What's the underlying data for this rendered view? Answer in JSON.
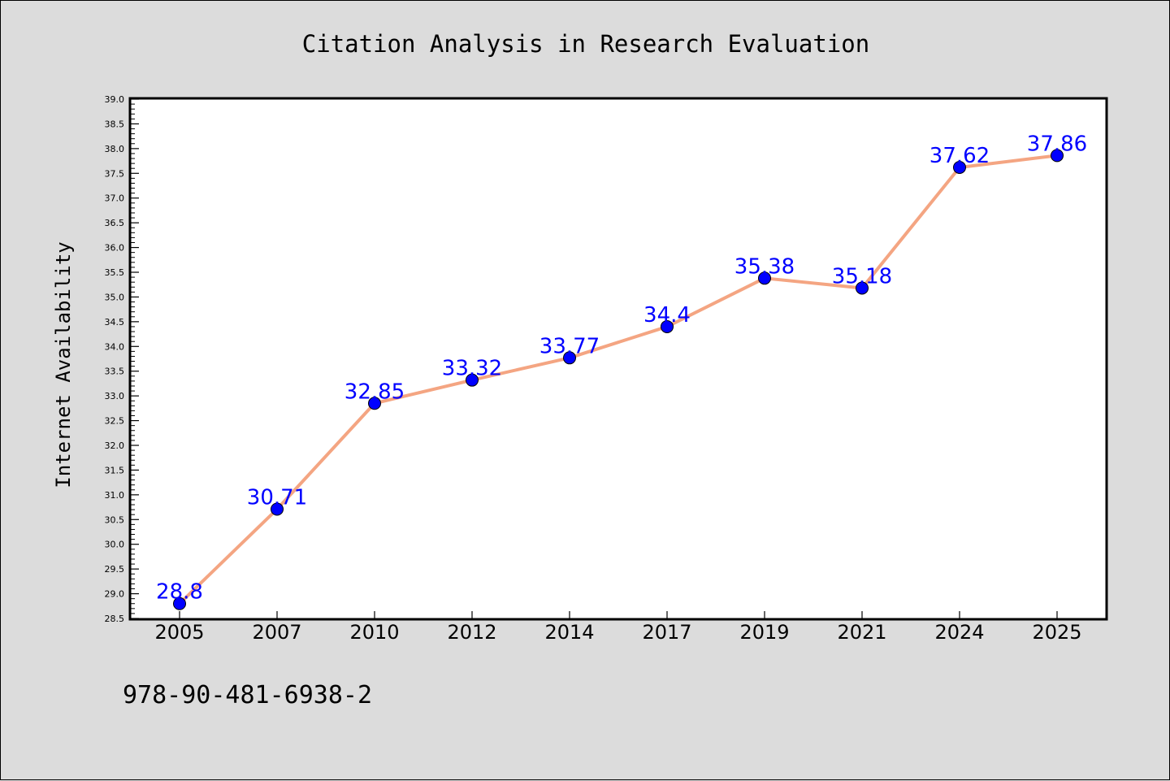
{
  "chart_data": {
    "type": "line",
    "title": "Citation Analysis in Research Evaluation",
    "ylabel": "Internet Availability",
    "xlabel": "",
    "categories": [
      "2005",
      "2007",
      "2010",
      "2012",
      "2014",
      "2017",
      "2019",
      "2021",
      "2024",
      "2025"
    ],
    "series": [
      {
        "values": [
          28.8,
          30.71,
          32.85,
          33.32,
          33.77,
          34.4,
          35.38,
          35.18,
          37.62,
          37.86
        ],
        "labels": [
          "28.8",
          "30.71",
          "32.85",
          "33.32",
          "33.77",
          "34.4",
          "35.38",
          "35.18",
          "37.62",
          "37.86"
        ],
        "line_color": "#f4a582",
        "marker_color": "#0000ff",
        "label_color": "#0000ff"
      }
    ],
    "ylim": [
      28.5,
      39.0
    ],
    "ytick_step": 0.5,
    "grid": false,
    "legend": "none"
  },
  "footer": {
    "isbn": "978-90-481-6938-2"
  }
}
